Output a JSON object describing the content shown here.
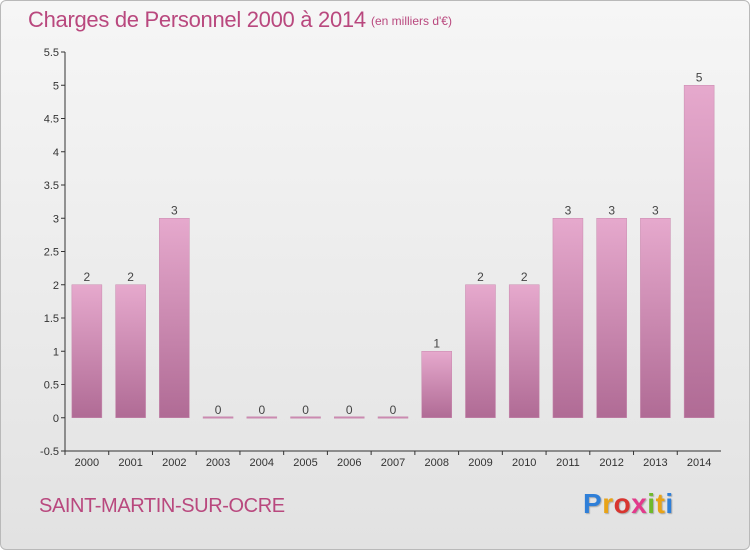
{
  "header": {
    "title": "Charges de Personnel 2000 à 2014",
    "subtitle": "(en milliers d'€)"
  },
  "footer": {
    "commune": "SAINT-MARTIN-SUR-OCRE",
    "logo": "Proxiti",
    "logo_colors": [
      "#2f7fd8",
      "#e8a317",
      "#d8352f",
      "#e23a8b",
      "#6fb92c",
      "#e8a317",
      "#2f7fd8"
    ]
  },
  "colors": {
    "bar_top": "#e6a9cd",
    "bar_bottom": "#b06b95",
    "text": "#b9487e",
    "axis": "#333333"
  },
  "chart_data": {
    "type": "bar",
    "title": "Charges de Personnel 2000 à 2014",
    "subtitle": "(en milliers d'€)",
    "categories": [
      "2000",
      "2001",
      "2002",
      "2003",
      "2004",
      "2005",
      "2006",
      "2007",
      "2008",
      "2009",
      "2010",
      "2011",
      "2012",
      "2013",
      "2014"
    ],
    "values": [
      2,
      2,
      3,
      0,
      0,
      0,
      0,
      0,
      1,
      2,
      2,
      3,
      3,
      3,
      5
    ],
    "data_labels": [
      "2",
      "2",
      "3",
      "0",
      "0",
      "0",
      "0",
      "0",
      "1",
      "2",
      "2",
      "3",
      "3",
      "3",
      "5"
    ],
    "ylim": [
      -0.5,
      5.5
    ],
    "yticks": [
      "-0.5",
      "0",
      "0.5",
      "1",
      "1.5",
      "2",
      "2.5",
      "3",
      "3.5",
      "4",
      "4.5",
      "5",
      "5.5"
    ],
    "grid": false,
    "legend": "none"
  }
}
